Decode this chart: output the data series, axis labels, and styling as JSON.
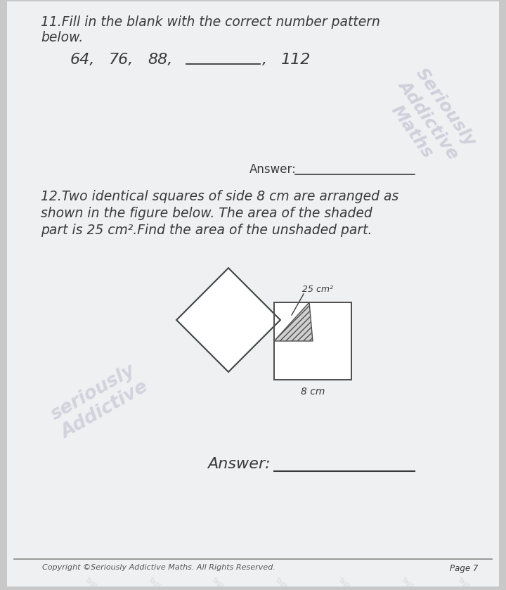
{
  "bg_color": "#c8c8c8",
  "page_bg": "#eef0f2",
  "text_color": "#3a3a3a",
  "title11_line1": "11.Fill in the blank with the correct number pattern",
  "title11_line2": "below.",
  "q12_line1": "12.Two identical squares of side 8 cm are arranged as",
  "q12_line2": "shown in the figure below. The area of the shaded",
  "q12_line3": "part is 25 cm².Find the area of the unshaded part.",
  "label_25cm2": "25 cm²",
  "label_8cm": "8 cm",
  "answer1_label": "Answer:",
  "answer2_label": "Answer:",
  "copyright": "Copyright ©Seriously Addictive Maths. All Rights Reserved.",
  "page_num": "Page 7",
  "watermark_lines": [
    "Seriously",
    "Addictive",
    "Maths"
  ],
  "watermark2_lines": [
    "seriously",
    "Addictive"
  ],
  "font_main": 13.5,
  "font_pattern": 16,
  "font_answer1": 12,
  "font_answer2": 16
}
